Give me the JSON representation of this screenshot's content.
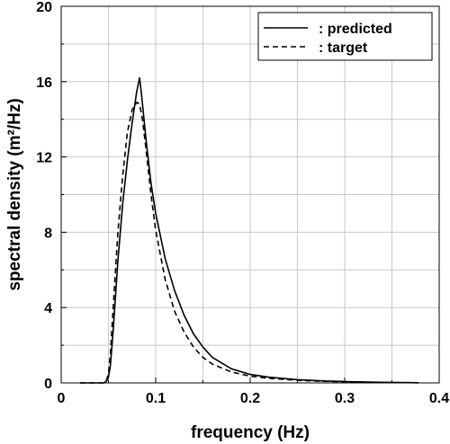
{
  "chart_data": {
    "type": "line",
    "title": "",
    "xlabel": "frequency (Hz)",
    "ylabel": "spectral density (m²/Hz)",
    "xlim": [
      0,
      0.4
    ],
    "ylim": [
      0,
      20
    ],
    "xticks": [
      0,
      0.1,
      0.2,
      0.3,
      0.4
    ],
    "xtick_labels": [
      "0",
      "0.1",
      "0.2",
      "0.3",
      "0.4"
    ],
    "yticks": [
      0,
      4,
      8,
      12,
      16,
      20
    ],
    "ytick_labels": [
      "0",
      "4",
      "8",
      "12",
      "16",
      "20"
    ],
    "grid": true,
    "legend_position": "top-right",
    "series": [
      {
        "name": ": predicted",
        "style": "solid",
        "color": "#000000",
        "x": [
          0.02,
          0.045,
          0.048,
          0.05,
          0.052,
          0.055,
          0.06,
          0.065,
          0.07,
          0.075,
          0.08,
          0.083,
          0.085,
          0.09,
          0.095,
          0.1,
          0.11,
          0.12,
          0.13,
          0.14,
          0.15,
          0.16,
          0.18,
          0.2,
          0.22,
          0.25,
          0.28,
          0.3,
          0.33,
          0.35,
          0.378
        ],
        "y": [
          0,
          0,
          0.1,
          0.3,
          0.9,
          2.8,
          6.5,
          9.5,
          11.8,
          13.8,
          15.5,
          16.2,
          15.3,
          12.8,
          10.6,
          9.0,
          6.6,
          4.9,
          3.6,
          2.6,
          1.9,
          1.35,
          0.75,
          0.45,
          0.3,
          0.17,
          0.1,
          0.07,
          0.04,
          0.02,
          0.01
        ]
      },
      {
        "name": ": target",
        "style": "dashed",
        "color": "#000000",
        "x": [
          0.02,
          0.045,
          0.048,
          0.05,
          0.052,
          0.055,
          0.06,
          0.065,
          0.07,
          0.075,
          0.08,
          0.083,
          0.086,
          0.09,
          0.095,
          0.1,
          0.11,
          0.12,
          0.13,
          0.14,
          0.15,
          0.16,
          0.18,
          0.2,
          0.22,
          0.25,
          0.28,
          0.3,
          0.33,
          0.35,
          0.378
        ],
        "y": [
          0,
          0,
          0.15,
          0.5,
          1.5,
          4.0,
          8.0,
          11.0,
          13.3,
          14.5,
          14.9,
          14.8,
          14.0,
          12.3,
          10.0,
          8.1,
          5.5,
          3.8,
          2.7,
          1.9,
          1.35,
          1.0,
          0.58,
          0.36,
          0.24,
          0.14,
          0.08,
          0.06,
          0.03,
          0.02,
          0.01
        ]
      }
    ]
  }
}
